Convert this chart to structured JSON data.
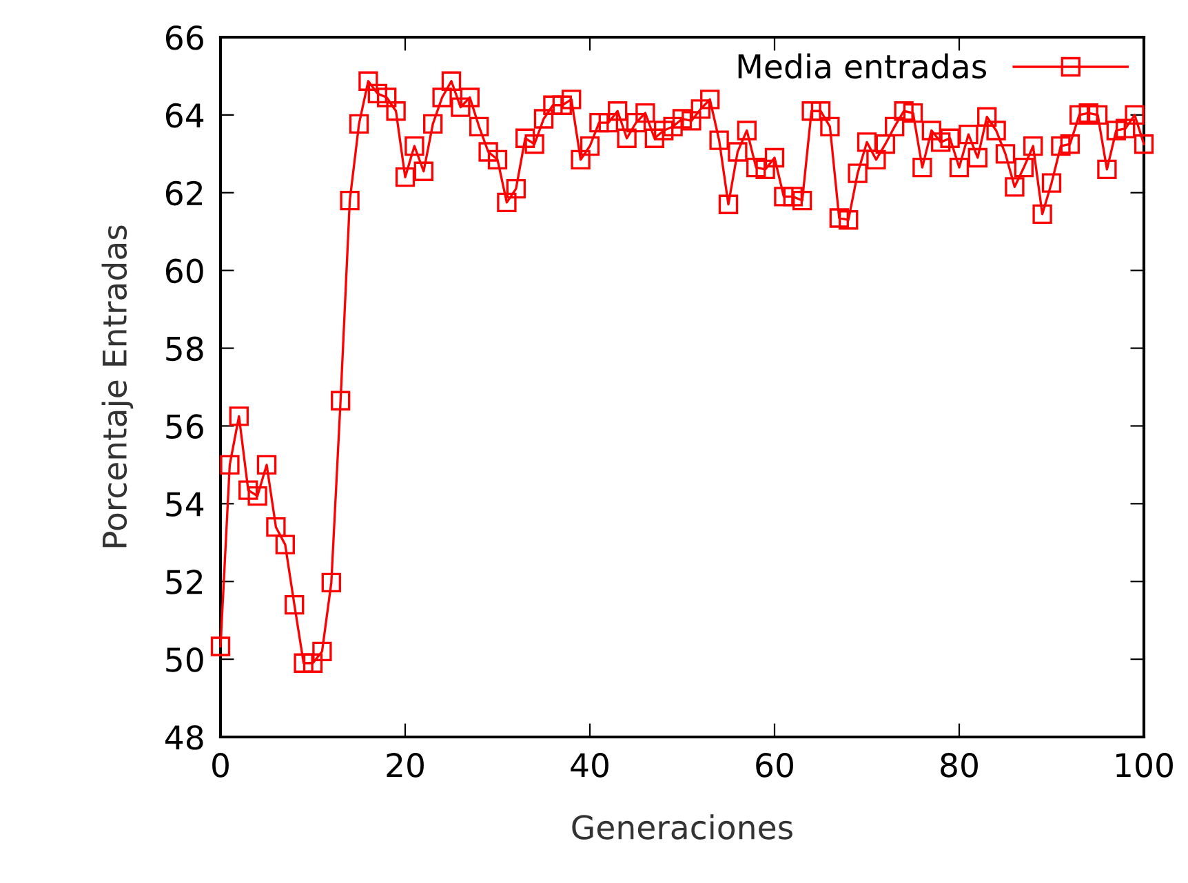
{
  "chart_data": {
    "type": "line",
    "xlabel": "Generaciones",
    "ylabel": "Porcentaje Entradas",
    "xlim": [
      0,
      100
    ],
    "ylim": [
      48,
      66
    ],
    "xticks": [
      0,
      20,
      40,
      60,
      80,
      100
    ],
    "yticks": [
      48,
      50,
      52,
      54,
      56,
      58,
      60,
      62,
      64,
      66
    ],
    "grid": false,
    "legend": "top right",
    "marker": "square",
    "line_style": "solid",
    "x": [
      0,
      1,
      2,
      3,
      4,
      5,
      6,
      7,
      8,
      9,
      10,
      11,
      12,
      13,
      14,
      15,
      16,
      17,
      18,
      19,
      20,
      21,
      22,
      23,
      24,
      25,
      26,
      27,
      28,
      29,
      30,
      31,
      32,
      33,
      34,
      35,
      36,
      37,
      38,
      39,
      40,
      41,
      42,
      43,
      44,
      45,
      46,
      47,
      48,
      49,
      50,
      51,
      52,
      53,
      54,
      55,
      56,
      57,
      58,
      59,
      60,
      61,
      62,
      63,
      64,
      65,
      66,
      67,
      68,
      69,
      70,
      71,
      72,
      73,
      74,
      75,
      76,
      77,
      78,
      79,
      80,
      81,
      82,
      83,
      84,
      85,
      86,
      87,
      88,
      89,
      90,
      91,
      92,
      93,
      94,
      95,
      96,
      97,
      98,
      99,
      100
    ],
    "series": [
      {
        "name": "Media entradas",
        "color": "#ff0000",
        "values": [
          50.33,
          55.0,
          56.25,
          54.35,
          54.2,
          55.0,
          53.4,
          52.95,
          51.4,
          49.9,
          49.9,
          50.2,
          51.97,
          56.65,
          61.8,
          63.77,
          64.87,
          64.55,
          64.45,
          64.1,
          62.4,
          63.2,
          62.55,
          63.77,
          64.45,
          64.87,
          64.2,
          64.45,
          63.7,
          63.05,
          62.85,
          61.75,
          62.1,
          63.4,
          63.25,
          63.9,
          64.25,
          64.25,
          64.4,
          62.85,
          63.2,
          63.8,
          63.8,
          64.1,
          63.4,
          63.8,
          64.05,
          63.4,
          63.6,
          63.7,
          63.9,
          63.85,
          64.15,
          64.4,
          63.35,
          61.7,
          63.05,
          63.6,
          62.65,
          62.6,
          62.9,
          61.9,
          61.9,
          61.8,
          64.1,
          64.1,
          63.7,
          61.35,
          61.3,
          62.5,
          63.3,
          62.85,
          63.25,
          63.7,
          64.1,
          64.05,
          62.65,
          63.6,
          63.3,
          63.4,
          62.65,
          63.5,
          62.9,
          63.95,
          63.6,
          63.0,
          62.15,
          62.65,
          63.2,
          61.45,
          62.25,
          63.2,
          63.25,
          64.0,
          64.05,
          64.0,
          62.6,
          63.6,
          63.65,
          64.0,
          63.25
        ]
      }
    ]
  }
}
